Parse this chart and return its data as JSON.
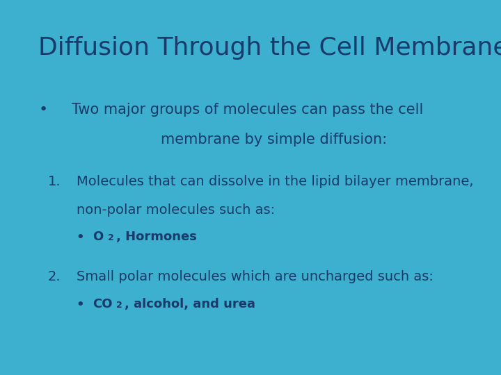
{
  "title": "Diffusion Through the Cell Membrane",
  "title_color": "#1a3a6b",
  "title_fontsize": 26,
  "border_color": "#3db0d0",
  "inner_bg_color": "#add8e6",
  "text_color": "#1a3a6b",
  "font_family": "DejaVu Sans",
  "bullet_line1": "Two major groups of molecules can pass the cell",
  "bullet_line2": "membrane by simple diffusion:",
  "item1_line1": "Molecules that can dissolve in the lipid bilayer membrane,",
  "item1_line2": "non-polar molecules such as:",
  "item2_line1": "Small polar molecules which are uncharged such as:"
}
